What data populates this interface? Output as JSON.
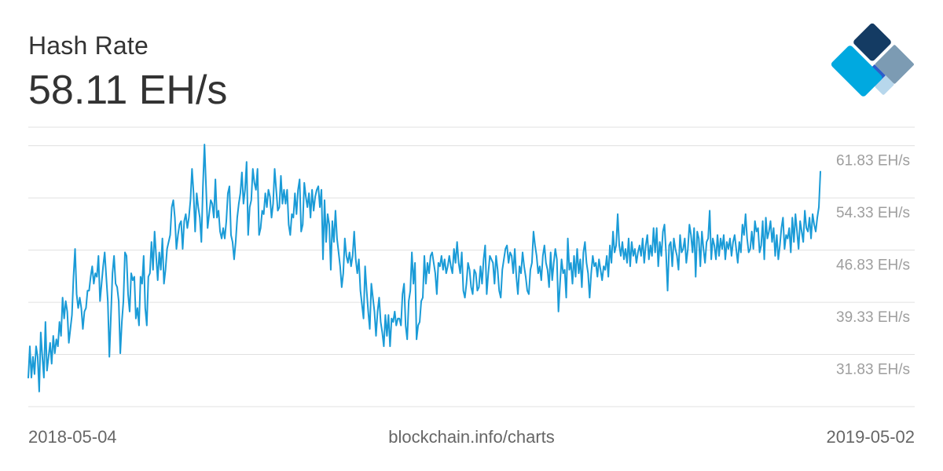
{
  "header": {
    "title": "Hash Rate",
    "current_value": "58.11 EH/s"
  },
  "footer": {
    "start_date": "2018-05-04",
    "source": "blockchain.info/charts",
    "end_date": "2019-05-02"
  },
  "colors": {
    "line": "#1A9BD7",
    "grid": "#E0E0E0",
    "tick_label": "#9E9E9E",
    "text": "#333333",
    "logo_dark": "#143B63",
    "logo_grey": "#7C9BB3",
    "logo_blue": "#2D5DC9",
    "logo_light": "#B7D7EC",
    "logo_cyan": "#00A9E0"
  },
  "logo": {
    "icon": "blockchain-diamond-logo"
  },
  "chart_data": {
    "type": "line",
    "title": "Hash Rate",
    "xlabel": "",
    "ylabel": "",
    "x_start": "2018-05-04",
    "x_end": "2019-05-02",
    "ylim": [
      24.33,
      64.5
    ],
    "yticks": [
      31.83,
      39.33,
      46.83,
      54.33,
      61.83
    ],
    "ytick_labels": [
      "31.83 EH/s",
      "39.33 EH/s",
      "46.83 EH/s",
      "54.33 EH/s",
      "61.83 EH/s"
    ],
    "grid": true,
    "legend": "none",
    "series": [
      {
        "values": [
          28.5,
          33.0,
          28.5,
          31.5,
          29.0,
          33.0,
          31.5,
          26.5,
          35.0,
          31.5,
          28.5,
          36.5,
          29.5,
          31.5,
          33.5,
          30.5,
          34.5,
          32.0,
          34.0,
          33.0,
          36.5,
          34.5,
          40.0,
          37.0,
          39.5,
          38.0,
          33.5,
          35.5,
          37.5,
          43.0,
          47.0,
          40.5,
          38.5,
          40.0,
          38.5,
          35.5,
          38.0,
          38.5,
          41.0,
          41.0,
          43.0,
          44.5,
          42.0,
          43.5,
          43.0,
          46.0,
          39.5,
          42.0,
          44.5,
          46.5,
          43.0,
          39.5,
          31.5,
          37.5,
          43.5,
          46.0,
          42.0,
          41.5,
          39.5,
          32.0,
          36.5,
          39.5,
          46.5,
          46.0,
          40.5,
          38.0,
          43.5,
          42.5,
          43.0,
          37.0,
          38.5,
          36.0,
          43.0,
          42.0,
          46.0,
          38.5,
          36.0,
          43.0,
          43.5,
          48.0,
          44.0,
          49.5,
          46.0,
          42.5,
          46.5,
          44.0,
          48.5,
          42.0,
          44.0,
          47.0,
          48.0,
          49.0,
          53.0,
          54.0,
          51.5,
          47.0,
          49.0,
          50.5,
          51.0,
          47.0,
          51.0,
          52.0,
          50.0,
          51.5,
          54.0,
          58.5,
          55.0,
          49.5,
          55.0,
          53.0,
          51.5,
          48.0,
          56.0,
          62.0,
          56.0,
          50.0,
          52.0,
          54.0,
          53.5,
          51.5,
          57.0,
          51.5,
          52.5,
          49.5,
          48.5,
          50.0,
          48.5,
          51.0,
          55.0,
          56.0,
          49.0,
          48.0,
          45.5,
          48.0,
          51.5,
          53.5,
          55.0,
          58.0,
          53.5,
          55.5,
          59.5,
          49.0,
          53.0,
          54.0,
          58.5,
          56.5,
          55.5,
          58.5,
          49.0,
          50.0,
          52.5,
          52.0,
          55.0,
          53.0,
          55.5,
          54.5,
          51.5,
          53.5,
          58.5,
          55.5,
          52.5,
          53.0,
          57.5,
          53.5,
          55.5,
          53.5,
          55.5,
          50.5,
          49.0,
          52.0,
          51.5,
          55.0,
          52.0,
          55.5,
          57.0,
          49.5,
          50.5,
          56.5,
          54.5,
          53.0,
          55.0,
          51.5,
          55.5,
          52.5,
          54.5,
          55.5,
          56.0,
          53.0,
          55.5,
          45.5,
          54.0,
          48.0,
          52.0,
          50.5,
          44.0,
          51.0,
          48.0,
          52.5,
          48.5,
          46.5,
          44.5,
          41.5,
          43.5,
          48.5,
          46.0,
          45.0,
          46.5,
          44.5,
          46.0,
          49.5,
          45.5,
          43.5,
          45.5,
          41.0,
          39.0,
          37.0,
          44.5,
          41.0,
          38.0,
          35.5,
          42.0,
          40.0,
          38.0,
          34.5,
          38.0,
          40.0,
          36.5,
          35.0,
          33.0,
          37.5,
          34.5,
          37.5,
          33.0,
          37.0,
          36.5,
          38.0,
          36.0,
          37.0,
          37.0,
          36.0,
          40.5,
          42.0,
          36.0,
          34.0,
          39.5,
          41.0,
          46.5,
          42.0,
          45.0,
          34.0,
          36.0,
          36.5,
          39.5,
          40.0,
          46.0,
          42.0,
          45.0,
          43.5,
          46.0,
          46.5,
          45.0,
          43.5,
          40.5,
          45.0,
          44.5,
          46.0,
          44.0,
          45.5,
          43.5,
          44.5,
          46.0,
          44.5,
          43.5,
          47.0,
          45.0,
          48.0,
          45.0,
          43.5,
          46.5,
          41.0,
          40.0,
          42.0,
          45.0,
          44.0,
          41.5,
          40.5,
          44.0,
          43.5,
          41.0,
          41.5,
          44.5,
          42.0,
          45.5,
          47.5,
          40.5,
          43.5,
          46.0,
          45.5,
          45.0,
          42.0,
          46.0,
          44.0,
          41.0,
          40.0,
          44.0,
          45.5,
          47.0,
          47.5,
          45.0,
          46.5,
          46.0,
          43.5,
          47.0,
          43.0,
          40.5,
          44.5,
          43.5,
          46.5,
          44.5,
          43.0,
          41.0,
          40.5,
          44.0,
          45.0,
          49.5,
          47.5,
          46.0,
          43.5,
          44.5,
          42.5,
          46.0,
          47.5,
          45.0,
          44.0,
          41.5,
          46.5,
          42.5,
          45.0,
          47.0,
          45.5,
          38.0,
          42.0,
          45.5,
          43.5,
          44.0,
          40.0,
          48.5,
          44.0,
          45.0,
          42.0,
          46.0,
          43.0,
          47.0,
          43.5,
          45.5,
          41.5,
          46.5,
          48.0,
          45.0,
          43.5,
          40.0,
          43.5,
          46.0,
          44.5,
          45.0,
          43.0,
          45.5,
          44.0,
          42.5,
          44.5,
          44.0,
          46.0,
          43.0,
          47.5,
          45.0,
          49.5,
          46.5,
          47.5,
          52.0,
          47.5,
          46.0,
          48.0,
          45.5,
          47.0,
          45.0,
          48.5,
          44.5,
          48.0,
          46.0,
          47.0,
          45.0,
          46.5,
          47.5,
          46.0,
          48.5,
          45.0,
          47.5,
          49.0,
          45.5,
          47.5,
          46.0,
          50.0,
          46.5,
          50.0,
          44.5,
          48.0,
          46.0,
          49.5,
          50.5,
          46.5,
          41.0,
          47.5,
          48.0,
          44.5,
          48.5,
          47.0,
          46.0,
          44.0,
          49.0,
          46.5,
          47.0,
          48.5,
          45.0,
          47.0,
          50.5,
          49.0,
          46.5,
          50.0,
          43.0,
          49.5,
          48.5,
          44.5,
          49.5,
          47.0,
          45.0,
          48.0,
          48.5,
          52.5,
          45.5,
          48.5,
          47.5,
          45.5,
          49.0,
          46.0,
          48.5,
          47.0,
          49.0,
          45.5,
          48.0,
          47.0,
          48.5,
          46.0,
          48.0,
          49.0,
          47.0,
          45.0,
          48.0,
          46.5,
          50.5,
          49.0,
          52.0,
          48.5,
          46.5,
          47.0,
          49.5,
          47.0,
          51.0,
          49.5,
          50.0,
          46.5,
          47.5,
          51.0,
          45.5,
          51.5,
          48.5,
          49.5,
          51.0,
          48.0,
          50.0,
          46.0,
          49.0,
          45.5,
          47.5,
          50.0,
          51.5,
          47.0,
          49.0,
          48.5,
          50.0,
          46.5,
          51.5,
          48.0,
          52.0,
          49.5,
          47.0,
          51.0,
          49.5,
          48.0,
          52.5,
          50.0,
          49.5,
          51.5,
          48.5,
          52.0,
          50.5,
          49.5,
          51.5,
          53.0,
          58.11
        ]
      }
    ]
  }
}
